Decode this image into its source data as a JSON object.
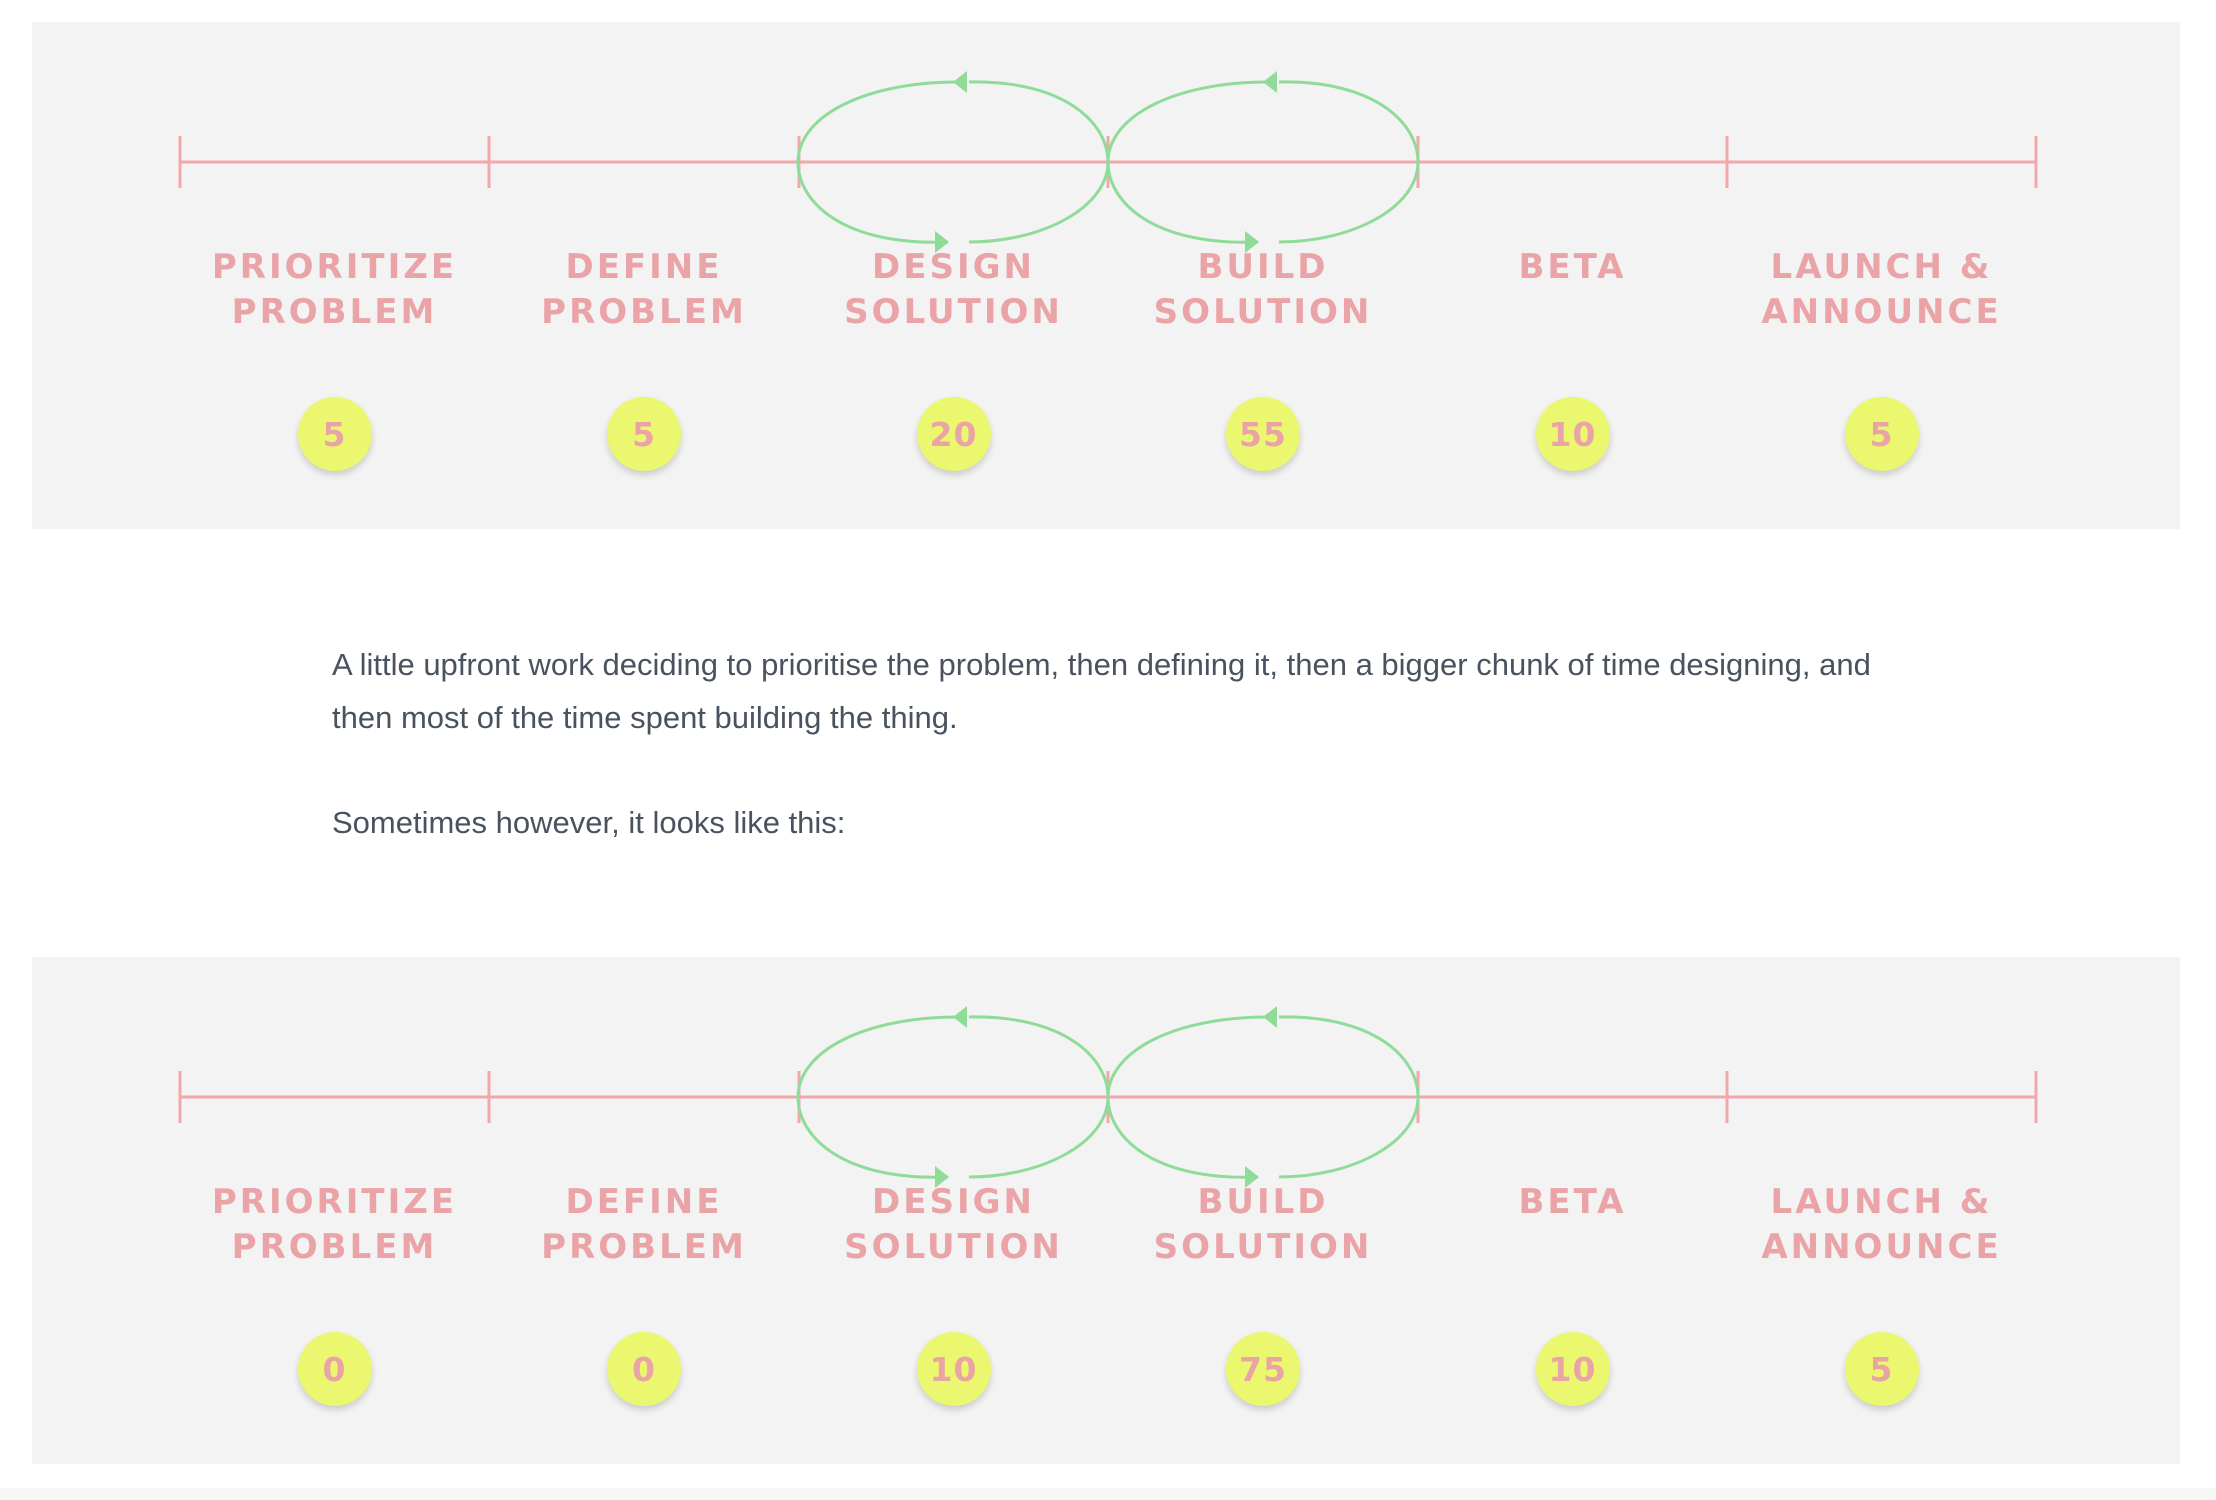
{
  "colors": {
    "panel_background": "#f3f3f3",
    "timeline_line": "#f2a8ab",
    "stage_label_text": "#eaa3a6",
    "badge_fill": "#eaf76f",
    "loop_arrows": "#8fdc98",
    "paragraph_text": "#495360"
  },
  "stages": [
    {
      "line1": "PRIORITIZE",
      "line2": "PROBLEM"
    },
    {
      "line1": "DEFINE",
      "line2": "PROBLEM"
    },
    {
      "line1": "DESIGN",
      "line2": "SOLUTION"
    },
    {
      "line1": "BUILD",
      "line2": "SOLUTION"
    },
    {
      "line1": "BETA",
      "line2": ""
    },
    {
      "line1": "LAUNCH &",
      "line2": "ANNOUNCE"
    }
  ],
  "diagrams": [
    {
      "values": [
        "5",
        "5",
        "20",
        "55",
        "10",
        "5"
      ]
    },
    {
      "values": [
        "0",
        "0",
        "10",
        "75",
        "10",
        "5"
      ]
    }
  ],
  "paragraph_1": "A little upfront work deciding to prioritise the problem, then defining it, then a bigger chunk of time designing, and then most of the time spent building the thing.",
  "paragraph_2": "Sometimes however, it looks like this:"
}
